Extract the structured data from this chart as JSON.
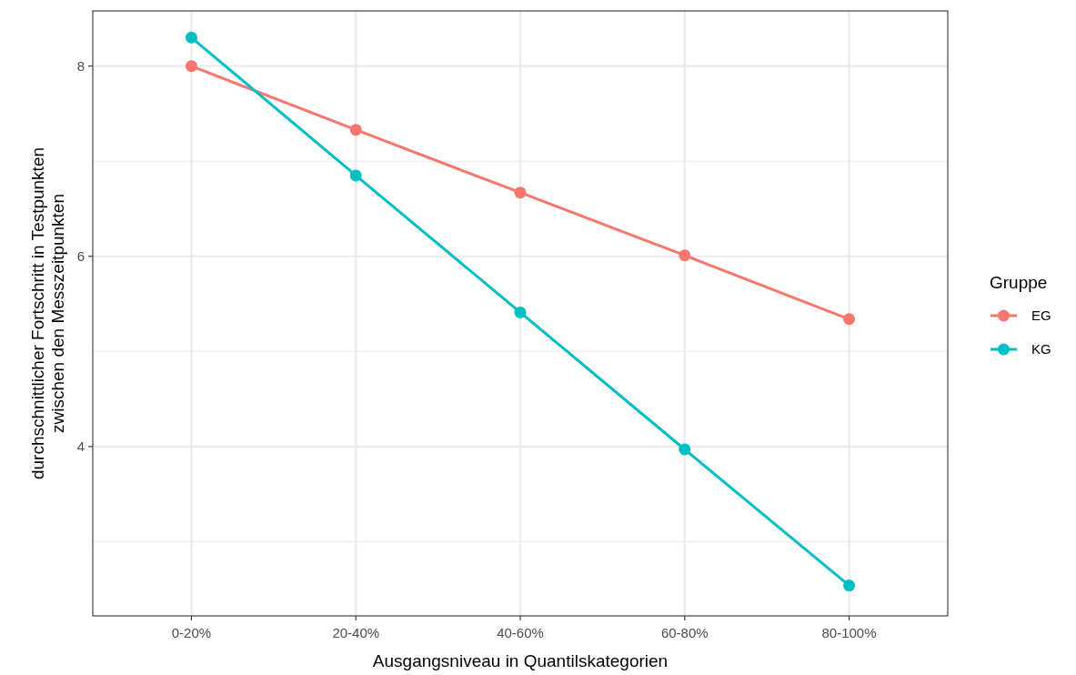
{
  "chart_data": {
    "type": "line",
    "xlabel": "Ausgangsniveau in Quantilskategorien",
    "ylabel": "durchschnittlicher Fortschritt in Testpunkten\nzwischen den Messzeitpunkten",
    "legend_title": "Gruppe",
    "categories": [
      "0-20%",
      "20-40%",
      "40-60%",
      "60-80%",
      "80-100%"
    ],
    "series": [
      {
        "name": "EG",
        "color": "#f8766d",
        "values": [
          8.0,
          7.33,
          6.67,
          6.01,
          5.34
        ]
      },
      {
        "name": "KG",
        "color": "#00bfc4",
        "values": [
          8.3,
          6.85,
          5.41,
          3.97,
          2.54
        ]
      }
    ],
    "ylim": [
      2.22,
      8.58
    ],
    "yticks": [
      4,
      6,
      8
    ],
    "grid": true,
    "legend": "right",
    "marker": "circle",
    "line_style": "solid"
  }
}
